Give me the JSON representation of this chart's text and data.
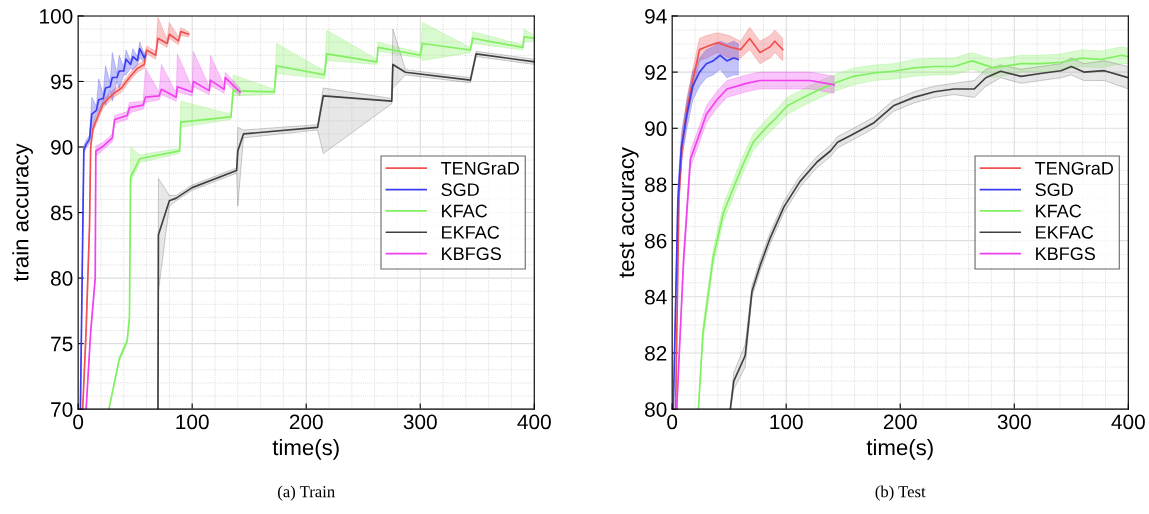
{
  "chart_data": [
    {
      "type": "line",
      "title": "(a) Train",
      "xlabel": "time(s)",
      "ylabel": "train accuracy",
      "xlim": [
        0,
        400
      ],
      "ylim": [
        70,
        100
      ],
      "xticks": [
        0,
        100,
        200,
        300,
        400
      ],
      "yticks": [
        70,
        75,
        80,
        85,
        90,
        95,
        100
      ],
      "grid": true,
      "legend": "right",
      "line_style": "solid",
      "marker": "none",
      "series": [
        {
          "name": "TENGraD",
          "color": "#f05050",
          "x": [
            4,
            7,
            10,
            11,
            13,
            18,
            22,
            30,
            38,
            45,
            52,
            58,
            60,
            68,
            70,
            78,
            80,
            88,
            90,
            97
          ],
          "values": [
            70,
            76,
            84,
            90,
            91.4,
            92.5,
            93.3,
            94,
            94.5,
            95.3,
            96,
            96.3,
            97.4,
            97,
            98.3,
            97.9,
            98.6,
            98.1,
            98.8,
            98.6
          ],
          "lower": [
            70,
            75.5,
            83.5,
            89.7,
            91.1,
            92.2,
            93,
            93.7,
            94.2,
            95,
            95.7,
            96,
            97.1,
            96.7,
            98,
            97.6,
            98.3,
            97.8,
            98.5,
            98.4
          ],
          "upper": [
            70,
            76.5,
            84.5,
            90.3,
            91.7,
            92.8,
            93.6,
            94.3,
            94.8,
            95.6,
            96.3,
            96.6,
            97.7,
            97.3,
            99.9,
            98.2,
            99.5,
            98.4,
            99.1,
            98.8
          ]
        },
        {
          "name": "SGD",
          "color": "#3c3cf0",
          "x": [
            2,
            5,
            7,
            10,
            12,
            16,
            18,
            22,
            24,
            28,
            30,
            34,
            36,
            40,
            42,
            46,
            48,
            52,
            54,
            58,
            59
          ],
          "values": [
            70,
            89.8,
            90.2,
            90.6,
            92.5,
            92.8,
            93.6,
            93.7,
            94.5,
            94.6,
            95.3,
            95.3,
            95.8,
            95.8,
            96.7,
            96.3,
            96.9,
            96.6,
            97.5,
            96.8,
            97
          ],
          "lower": [
            70,
            89.5,
            89.9,
            90.3,
            91.5,
            92.5,
            92.8,
            93.4,
            93.2,
            94.3,
            93.5,
            95,
            94.5,
            95.5,
            95.5,
            96,
            95.9,
            96.3,
            96.8,
            96.5,
            96.7
          ],
          "upper": [
            70,
            90.1,
            90.5,
            90.9,
            93.8,
            93.1,
            95.2,
            94,
            96.2,
            94.9,
            97.2,
            95.6,
            97,
            96.1,
            97.4,
            96.6,
            97.5,
            96.9,
            98,
            97.1,
            97.3
          ]
        },
        {
          "name": "KFAC",
          "color": "#80f060",
          "x": [
            27,
            36,
            43,
            45,
            46,
            54,
            89,
            90,
            134,
            136,
            172,
            174,
            216,
            218,
            262,
            263,
            300,
            302,
            344,
            346,
            390,
            391,
            400
          ],
          "values": [
            70,
            73.8,
            75.2,
            77,
            87.7,
            89.1,
            89.7,
            91.9,
            92.3,
            94.3,
            94.2,
            96.2,
            95.5,
            97.1,
            96.5,
            97.6,
            97,
            97.9,
            97.4,
            98.3,
            97.6,
            98.4,
            98.3
          ],
          "lower": [
            70,
            73.6,
            75,
            76.8,
            87.3,
            88.8,
            89.5,
            91.5,
            92.1,
            93.9,
            94,
            95.6,
            95.2,
            96.6,
            96.3,
            97.3,
            96.8,
            96.6,
            97.2,
            97.9,
            97.4,
            98,
            98.1
          ],
          "upper": [
            70,
            74,
            75.4,
            77.2,
            90,
            89.4,
            89.9,
            93.5,
            92.5,
            95.5,
            94.4,
            97.9,
            95.8,
            98.9,
            96.7,
            98,
            97.2,
            99.5,
            97.6,
            98.8,
            97.8,
            99,
            98.5
          ]
        },
        {
          "name": "EKFAC",
          "color": "#404040",
          "x": [
            70,
            70.4,
            80,
            86,
            100,
            139,
            140,
            145,
            210,
            215,
            275,
            276,
            287,
            344,
            349,
            400
          ],
          "values": [
            70,
            83.3,
            85.9,
            86.1,
            86.9,
            88.2,
            89.7,
            91,
            91.5,
            93.9,
            93.5,
            96.3,
            95.7,
            95.1,
            97.1,
            96.5
          ],
          "lower": [
            70,
            79,
            85.5,
            85.9,
            86.7,
            88,
            85.5,
            90.7,
            91.3,
            89.5,
            93.3,
            94.5,
            95.5,
            94.9,
            96.9,
            96.3
          ],
          "upper": [
            70,
            87.6,
            86.3,
            86.3,
            87.1,
            88.4,
            91.5,
            91.3,
            91.7,
            94.5,
            93.7,
            99,
            95.9,
            95.3,
            97.3,
            96.7
          ]
        },
        {
          "name": "KBFGS",
          "color": "#f040f0",
          "x": [
            7,
            11,
            15,
            15.5,
            21,
            30,
            32,
            43,
            45,
            57,
            59,
            71,
            73,
            86,
            87,
            100,
            101,
            115,
            116,
            128,
            129,
            142
          ],
          "values": [
            70,
            75.9,
            80,
            89.7,
            90,
            90.7,
            92.1,
            92.4,
            93,
            93.2,
            93.8,
            93.9,
            94.4,
            93.8,
            94.6,
            94.2,
            95,
            94.3,
            95.1,
            94.4,
            95.3,
            94.2
          ],
          "lower": [
            70,
            75.7,
            79.8,
            89.3,
            89.7,
            90.4,
            91.8,
            92.1,
            92.6,
            92.9,
            93.4,
            93.6,
            94,
            93.5,
            94.2,
            93.9,
            94.6,
            94,
            94.7,
            94.1,
            94.9,
            93.9
          ],
          "upper": [
            70,
            76.1,
            80.2,
            90.1,
            90.3,
            91,
            92.4,
            92.7,
            93.4,
            93.5,
            96,
            94.2,
            96.3,
            94.1,
            97.1,
            94.5,
            97.3,
            94.6,
            97,
            94.7,
            95.7,
            94.5
          ]
        }
      ]
    },
    {
      "type": "line",
      "title": "(b) Test",
      "xlabel": "time(s)",
      "ylabel": "test accuracy",
      "xlim": [
        0,
        400
      ],
      "ylim": [
        80,
        94
      ],
      "xticks": [
        0,
        100,
        200,
        300,
        400
      ],
      "yticks": [
        80,
        82,
        84,
        86,
        88,
        90,
        92,
        94
      ],
      "grid": true,
      "legend": "right",
      "line_style": "solid",
      "marker": "none",
      "series": [
        {
          "name": "TENGraD",
          "color": "#f05050",
          "x": [
            3,
            6,
            9,
            13,
            18,
            24,
            30,
            40,
            50,
            60,
            68,
            77,
            86,
            90,
            97
          ],
          "values": [
            80,
            87.6,
            89.5,
            90.7,
            91.7,
            92.8,
            92.9,
            93.05,
            92.9,
            92.8,
            93.2,
            92.7,
            92.9,
            93.1,
            92.8
          ],
          "lower": [
            80,
            87.2,
            89.1,
            90.3,
            91.3,
            92.4,
            92.5,
            92.7,
            92.5,
            92.5,
            92.8,
            92.3,
            92.5,
            92.7,
            92.4
          ],
          "upper": [
            80,
            88,
            89.9,
            91.1,
            92.1,
            93.2,
            93.3,
            93.4,
            93.3,
            93.1,
            93.6,
            93.1,
            93.3,
            93.5,
            93.2
          ]
        },
        {
          "name": "SGD",
          "color": "#3c3cf0",
          "x": [
            1,
            5,
            8,
            13,
            18,
            24,
            30,
            36,
            42,
            48,
            54,
            58
          ],
          "values": [
            80,
            87.4,
            89.3,
            90.5,
            91.5,
            92,
            92.3,
            92.4,
            92.6,
            92.4,
            92.5,
            92.45
          ],
          "lower": [
            80,
            86.9,
            88.8,
            90,
            91,
            91.5,
            91.8,
            91.9,
            92.1,
            91.8,
            91.9,
            91.9
          ],
          "upper": [
            80,
            87.9,
            89.8,
            91,
            92,
            92.5,
            92.8,
            92.9,
            93.1,
            93,
            93.1,
            93
          ]
        },
        {
          "name": "KFAC",
          "color": "#80f060",
          "x": [
            23,
            27,
            36,
            45,
            54,
            62,
            71,
            83,
            92,
            101,
            115,
            130,
            142,
            159,
            177,
            194,
            212,
            230,
            247,
            263,
            282,
            306,
            323,
            341,
            359,
            376,
            394,
            400
          ],
          "values": [
            80,
            82.7,
            85.4,
            87,
            87.9,
            88.7,
            89.5,
            90.05,
            90.4,
            90.8,
            91.1,
            91.4,
            91.6,
            91.85,
            91.97,
            92.03,
            92.15,
            92.2,
            92.2,
            92.4,
            92.15,
            92.3,
            92.3,
            92.35,
            92.5,
            92.45,
            92.6,
            92.55
          ],
          "lower": [
            80,
            82.4,
            85.1,
            86.7,
            87.6,
            88.4,
            89.2,
            89.75,
            90.1,
            90.5,
            90.8,
            91.1,
            91.3,
            91.55,
            91.7,
            91.75,
            91.85,
            91.9,
            91.9,
            92.1,
            91.8,
            92,
            92,
            92.05,
            92.2,
            92.15,
            92.3,
            92.3
          ],
          "upper": [
            80,
            83,
            85.7,
            87.3,
            88.2,
            89,
            89.8,
            90.35,
            90.7,
            91.1,
            91.4,
            91.7,
            91.9,
            92.15,
            92.25,
            92.3,
            92.45,
            92.5,
            92.5,
            92.7,
            92.45,
            92.6,
            92.6,
            92.65,
            92.8,
            92.75,
            92.9,
            92.85
          ]
        },
        {
          "name": "EKFAC",
          "color": "#404040",
          "x": [
            51,
            54,
            64,
            70,
            77,
            86,
            98,
            112,
            127,
            139,
            145,
            159,
            177,
            194,
            212,
            230,
            247,
            265,
            275,
            288,
            306,
            323,
            341,
            350,
            361,
            379,
            400
          ],
          "values": [
            80,
            81,
            81.9,
            84.2,
            85.1,
            86.1,
            87.2,
            88.1,
            88.8,
            89.2,
            89.5,
            89.8,
            90.2,
            90.8,
            91.1,
            91.3,
            91.4,
            91.4,
            91.8,
            92.03,
            91.85,
            91.95,
            92.05,
            92.2,
            92,
            92.05,
            91.8
          ],
          "lower": [
            80,
            80.7,
            81.5,
            84,
            84.9,
            85.9,
            87,
            87.9,
            88.6,
            89,
            89.3,
            89.6,
            90,
            90.6,
            90.9,
            91.1,
            91.2,
            91.1,
            91.5,
            91.8,
            91.6,
            91.7,
            91.8,
            91.9,
            91.7,
            91.7,
            91.4
          ],
          "upper": [
            80,
            81.3,
            82.3,
            84.4,
            85.3,
            86.3,
            87.4,
            88.3,
            89,
            89.4,
            89.7,
            90,
            90.4,
            91,
            91.3,
            91.5,
            91.6,
            91.7,
            92.1,
            92.25,
            92.1,
            92.2,
            92.3,
            92.5,
            92.3,
            92.4,
            92.2
          ]
        },
        {
          "name": "KBFGS",
          "color": "#f040f0",
          "x": [
            4,
            10,
            16,
            24,
            30,
            39,
            48,
            57,
            65,
            77,
            92,
            106,
            121,
            142
          ],
          "values": [
            80,
            85.3,
            88.9,
            89.8,
            90.5,
            91,
            91.4,
            91.5,
            91.6,
            91.7,
            91.7,
            91.7,
            91.7,
            91.55
          ],
          "lower": [
            80,
            85,
            88.6,
            89.5,
            90.2,
            90.7,
            91.1,
            91.2,
            91.3,
            91.4,
            91.4,
            91.4,
            91.4,
            91.25
          ],
          "upper": [
            80,
            85.6,
            89.2,
            90.1,
            90.8,
            91.3,
            91.7,
            91.8,
            91.9,
            92,
            92,
            92,
            92,
            91.85
          ]
        }
      ]
    }
  ]
}
